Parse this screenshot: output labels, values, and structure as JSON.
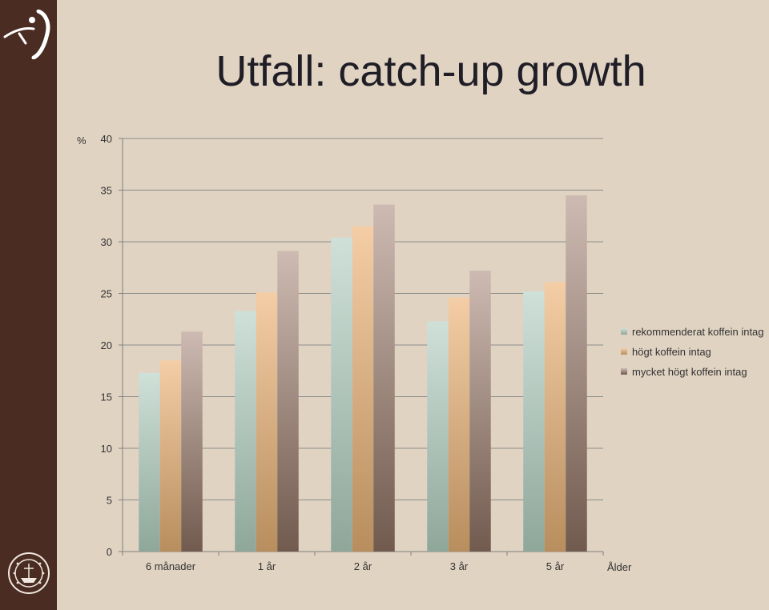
{
  "title": "Utfall: catch-up growth",
  "chart_data": {
    "type": "bar",
    "ylabel": "%",
    "xlabel": "Ålder",
    "categories": [
      "6 månader",
      "1 år",
      "2 år",
      "3 år",
      "5 år"
    ],
    "ylim": [
      0,
      40
    ],
    "yticks": [
      0,
      5,
      10,
      15,
      20,
      25,
      30,
      35,
      40
    ],
    "grid": true,
    "legend_position": "right",
    "series": [
      {
        "name": "rekommenderat koffein intag",
        "values": [
          17.3,
          23.3,
          30.4,
          22.3,
          25.2
        ],
        "color_top": "#cfe0d8",
        "color_bottom": "#8fa79b"
      },
      {
        "name": "högt koffein intag",
        "values": [
          18.5,
          25.1,
          31.5,
          24.6,
          26.1
        ],
        "color_top": "#f4cda6",
        "color_bottom": "#b88e5e"
      },
      {
        "name": "mycket högt koffein intag",
        "values": [
          21.3,
          29.1,
          33.6,
          27.2,
          34.5
        ],
        "color_top": "#cdbab2",
        "color_bottom": "#715a4e"
      }
    ]
  }
}
